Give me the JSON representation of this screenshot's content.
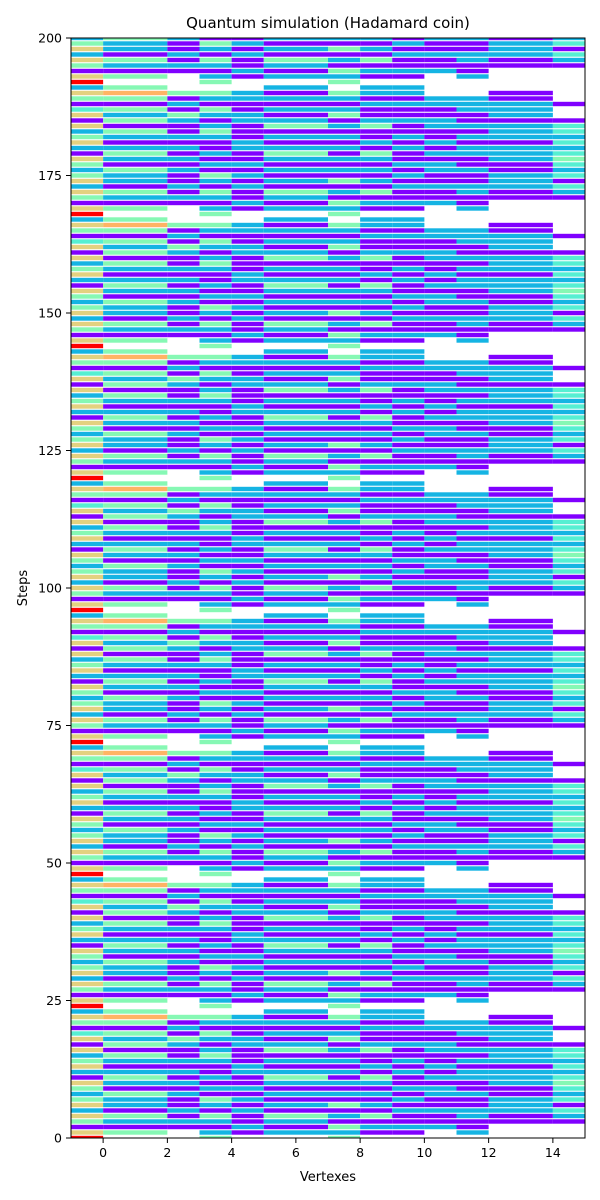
{
  "chart_data": {
    "type": "heatmap",
    "title": "Quantum simulation (Hadamard coin)",
    "xlabel": "Vertexes",
    "ylabel": "Steps",
    "xlim": [
      -1,
      15
    ],
    "ylim": [
      0,
      200
    ],
    "x_ticks": [
      "0",
      "2",
      "4",
      "6",
      "8",
      "10",
      "12",
      "14"
    ],
    "y_ticks": [
      "0",
      "25",
      "50",
      "75",
      "100",
      "125",
      "150",
      "175",
      "200"
    ],
    "grid": false,
    "bar_height_steps": 0.8,
    "period_steps": 24,
    "colors": {
      "red": "#ff0000",
      "orange": "#ffb464",
      "yellow": "#e3d180",
      "green": "#86f8b4",
      "cyan": "#56efd2",
      "blue": "#15b4e3",
      "purple": "#8000ff"
    },
    "segments": [
      {
        "x0": -1,
        "x1": 0,
        "pattern": [
          "red",
          "yellow",
          "purple",
          "green",
          "yellow",
          "blue",
          "yellow",
          "green",
          "blue",
          "green",
          "yellow",
          "purple",
          "blue",
          "yellow",
          "green",
          "blue",
          "yellow",
          "purple",
          "yellow",
          "cyan",
          "purple",
          "green",
          "yellow",
          "blue"
        ]
      },
      {
        "x0": 0,
        "x1": 2,
        "pattern": [
          "",
          "green",
          "purple",
          "blue",
          "green",
          "purple",
          "blue",
          "blue",
          "green",
          "purple",
          "blue",
          "green",
          "blue",
          "purple",
          "blue",
          "green",
          "purple",
          "green",
          "blue",
          "green",
          "purple",
          "green",
          "orange",
          "green"
        ]
      },
      {
        "x0": 2,
        "x1": 3,
        "pattern": [
          "",
          "",
          "purple",
          "blue",
          "purple",
          "blue",
          "purple",
          "purple",
          "blue",
          "purple",
          "blue",
          "purple",
          "blue",
          "purple",
          "blue",
          "purple",
          "purple",
          "blue",
          "green",
          "purple",
          "blue",
          "purple",
          "green",
          ""
        ]
      },
      {
        "x0": 3,
        "x1": 4,
        "pattern": [
          "green",
          "blue",
          "purple",
          "blue",
          "green",
          "purple",
          "blue",
          "green",
          "purple",
          "blue",
          "purple",
          "blue",
          "purple",
          "purple",
          "blue",
          "green",
          "blue",
          "purple",
          "blue",
          "green",
          "purple",
          "blue",
          "green",
          ""
        ]
      },
      {
        "x0": 4,
        "x1": 5,
        "pattern": [
          "",
          "purple",
          "blue",
          "purple",
          "purple",
          "blue",
          "purple",
          "blue",
          "purple",
          "blue",
          "purple",
          "purple",
          "blue",
          "blue",
          "purple",
          "purple",
          "purple",
          "blue",
          "blue",
          "purple",
          "purple",
          "blue",
          "blue",
          ""
        ]
      },
      {
        "x0": 5,
        "x1": 7,
        "pattern": [
          "",
          "blue",
          "purple",
          "blue",
          "green",
          "purple",
          "blue",
          "purple",
          "blue",
          "purple",
          "blue",
          "green",
          "blue",
          "purple",
          "blue",
          "purple",
          "green",
          "blue",
          "purple",
          "blue",
          "purple",
          "blue",
          "purple",
          "blue"
        ]
      },
      {
        "x0": 7,
        "x1": 8,
        "pattern": [
          "green",
          "blue",
          "green",
          "purple",
          "blue",
          "purple",
          "green",
          "purple",
          "blue",
          "purple",
          "blue",
          "purple",
          "blue",
          "purple",
          "blue",
          "purple",
          "blue",
          "purple",
          "green",
          "blue",
          "purple",
          "blue",
          "green",
          ""
        ]
      },
      {
        "x0": 8,
        "x1": 9,
        "pattern": [
          "",
          "purple",
          "blue",
          "purple",
          "green",
          "purple",
          "blue",
          "purple",
          "blue",
          "purple",
          "blue",
          "green",
          "purple",
          "blue",
          "purple",
          "purple",
          "green",
          "blue",
          "purple",
          "purple",
          "blue",
          "purple",
          "blue",
          "blue"
        ]
      },
      {
        "x0": 9,
        "x1": 10,
        "pattern": [
          "",
          "purple",
          "blue",
          "purple",
          "purple",
          "blue",
          "purple",
          "blue",
          "purple",
          "blue",
          "purple",
          "purple",
          "blue",
          "purple",
          "blue",
          "purple",
          "purple",
          "blue",
          "purple",
          "purple",
          "blue",
          "purple",
          "blue",
          "blue"
        ]
      },
      {
        "x0": 10,
        "x1": 11,
        "pattern": [
          "",
          "",
          "blue",
          "purple",
          "purple",
          "blue",
          "purple",
          "purple",
          "blue",
          "blue",
          "purple",
          "blue",
          "purple",
          "blue",
          "purple",
          "purple",
          "blue",
          "blue",
          "purple",
          "purple",
          "blue",
          "blue",
          "",
          ""
        ]
      },
      {
        "x0": 11,
        "x1": 12,
        "pattern": [
          "",
          "blue",
          "purple",
          "purple",
          "blue",
          "blue",
          "purple",
          "purple",
          "blue",
          "purple",
          "purple",
          "blue",
          "blue",
          "purple",
          "blue",
          "purple",
          "blue",
          "purple",
          "purple",
          "blue",
          "blue",
          "blue",
          "",
          ""
        ]
      },
      {
        "x0": 12,
        "x1": 14,
        "pattern": [
          "",
          "",
          "",
          "purple",
          "purple",
          "blue",
          "blue",
          "blue",
          "purple",
          "purple",
          "blue",
          "blue",
          "blue",
          "purple",
          "blue",
          "blue",
          "blue",
          "purple",
          "blue",
          "blue",
          "blue",
          "purple",
          "purple",
          ""
        ]
      },
      {
        "x0": 14,
        "x1": 15,
        "pattern": [
          "",
          "",
          "",
          "purple",
          "blue",
          "cyan",
          "purple",
          "cyan",
          "blue",
          "cyan",
          "green",
          "cyan",
          "blue",
          "cyan",
          "blue",
          "cyan",
          "cyan",
          "purple",
          "",
          "",
          "purple",
          "",
          "",
          ""
        ]
      }
    ]
  }
}
